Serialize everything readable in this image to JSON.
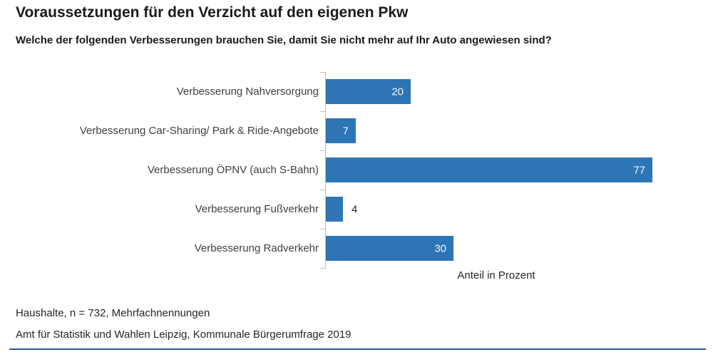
{
  "header": {
    "title": "Voraussetzungen für den Verzicht auf den eigenen Pkw",
    "subtitle": "Welche der folgenden Verbesserungen brauchen Sie, damit Sie nicht mehr auf Ihr Auto angewiesen sind?"
  },
  "chart_data": {
    "type": "bar",
    "orientation": "horizontal",
    "categories": [
      "Verbesserung Nahversorgung",
      "Verbesserung Car-Sharing/ Park & Ride-Angebote",
      "Verbesserung ÖPNV (auch S-Bahn)",
      "Verbesserung Fußverkehr",
      "Verbesserung Radverkehr"
    ],
    "values": [
      20,
      7,
      77,
      4,
      30
    ],
    "xlabel": "Anteil in Prozent",
    "xlim": [
      0,
      91
    ],
    "grid": false,
    "legend": false,
    "value_labels": true
  },
  "footer": {
    "note1": "Haushalte, n = 732, Mehrfachnennungen",
    "note2": "Amt für Statistik und Wahlen Leipzig, Kommunale Bürgerumfrage 2019"
  },
  "colors": {
    "bar": "#2E75B6",
    "axis": "#BFBFBF",
    "value_label_inside": "#F2F6FA",
    "value_label_outside": "#262626",
    "bottom_rule": "#2F5496"
  }
}
